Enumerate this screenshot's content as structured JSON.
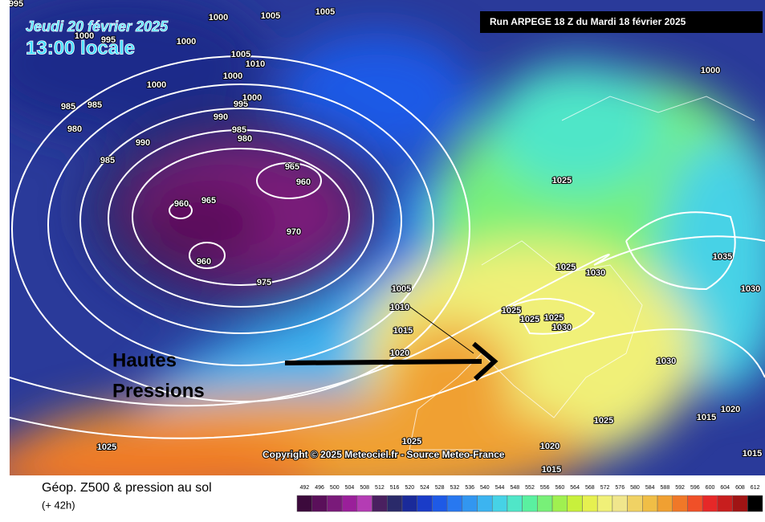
{
  "header": {
    "date": "Jeudi 20 février 2025",
    "time": "13:00 locale",
    "run": "Run ARPEGE 18 Z du Mardi 18 février 2025"
  },
  "annotation": [
    "Hautes",
    "Pressions"
  ],
  "copyright": "Copyright © 2025 Meteociel.fr - Source Meteo-France",
  "isobar_labels": [
    "995",
    "1000",
    "1005",
    "1005",
    "1000",
    "995",
    "1000",
    "1005",
    "1010",
    "1000",
    "1000",
    "985",
    "985",
    "990",
    "995",
    "1000",
    "985",
    "980",
    "980",
    "990",
    "985",
    "965",
    "960",
    "960",
    "965",
    "970",
    "960",
    "975",
    "1005",
    "1010",
    "1015",
    "1020",
    "1025",
    "1025",
    "1030",
    "1035",
    "1030",
    "1025",
    "1025",
    "1025",
    "1030",
    "1030",
    "1025",
    "1015",
    "1020",
    "1025",
    "1025",
    "1020",
    "1015",
    "1015",
    "1000"
  ],
  "footer": {
    "title": "Géop. Z500 & pression au sol",
    "lead": "(+ 42h)"
  },
  "legend": {
    "values": [
      492,
      496,
      500,
      504,
      508,
      512,
      516,
      520,
      524,
      528,
      532,
      536,
      540,
      544,
      548,
      552,
      556,
      560,
      564,
      568,
      572,
      576,
      580,
      584,
      588,
      592,
      596,
      600,
      604,
      608,
      612
    ],
    "colors": [
      "#3c0a3c",
      "#5a0f5a",
      "#7a1a7a",
      "#9a1f9a",
      "#b43cb4",
      "#4a2060",
      "#2a2a6a",
      "#1a2a9a",
      "#1a3cc8",
      "#1e5ae6",
      "#2878f0",
      "#3296f0",
      "#3cb4f0",
      "#46d2e6",
      "#50e6c8",
      "#5af0a0",
      "#78f078",
      "#a0f050",
      "#c8f03c",
      "#e6f050",
      "#f0f078",
      "#f0e68c",
      "#f0d264",
      "#f0be46",
      "#f0a032",
      "#f07828",
      "#f05028",
      "#e62828",
      "#c81e1e",
      "#a01414",
      "#000000"
    ]
  }
}
